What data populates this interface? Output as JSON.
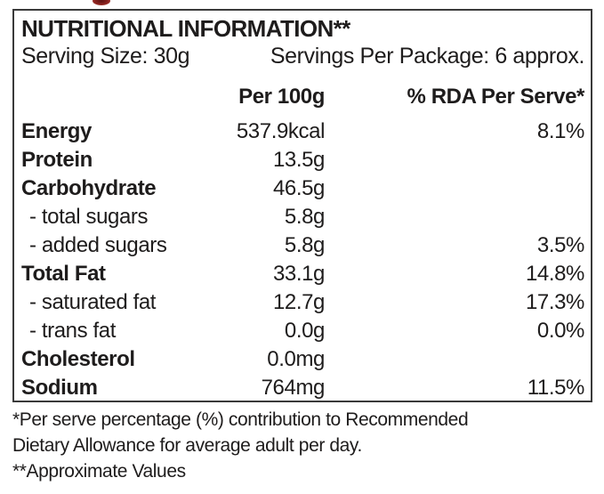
{
  "decoration": {
    "top_graphic": "clipped-red-graphic-tip",
    "accent_color": "#8c2420"
  },
  "label": {
    "title": "NUTRITIONAL INFORMATION**",
    "serving_size": "Serving Size: 30g",
    "servings_per_package": "Servings Per Package: 6 approx.",
    "columns": {
      "amount": "Per 100g",
      "rda": "% RDA Per Serve*"
    },
    "rows": [
      {
        "name": "Energy",
        "amount": "537.9kcal",
        "rda": "8.1%"
      },
      {
        "name": "Protein",
        "amount": "13.5g",
        "rda": ""
      },
      {
        "name": "Carbohydrate",
        "amount": "46.5g",
        "rda": ""
      },
      {
        "name": "- total sugars",
        "amount": "5.8g",
        "rda": ""
      },
      {
        "name": "- added sugars",
        "amount": "5.8g",
        "rda": "3.5%"
      },
      {
        "name": "Total Fat",
        "amount": "33.1g",
        "rda": "14.8%"
      },
      {
        "name": "- saturated fat",
        "amount": "12.7g",
        "rda": "17.3%"
      },
      {
        "name": "- trans fat",
        "amount": "0.0g",
        "rda": "0.0%"
      },
      {
        "name": "Cholesterol",
        "amount": "0.0mg",
        "rda": ""
      },
      {
        "name": "Sodium",
        "amount": "764mg",
        "rda": "11.5%"
      }
    ],
    "footnotes": [
      "*Per serve percentage (%) contribution to Recommended",
      "Dietary Allowance for average adult per day.",
      "**Approximate Values"
    ]
  },
  "colors": {
    "text": "#1e1c1c",
    "border": "#3a3a3a",
    "background": "#ffffff"
  }
}
